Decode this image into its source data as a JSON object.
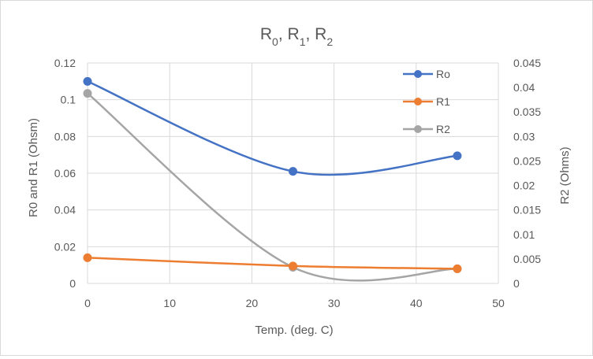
{
  "chart_data": {
    "type": "scatter",
    "title": {
      "base": "R",
      "parts": [
        "0",
        "1",
        "2"
      ],
      "separator": ", "
    },
    "title_plain": "R0, R1, R2",
    "xlabel": "Temp. (deg. C)",
    "ylabel_left": "R0 and R1 (Ohsm)",
    "ylabel_right": "R2 (Ohms)",
    "xlim": [
      0,
      50
    ],
    "ylim_left": [
      0,
      0.12
    ],
    "ylim_right": [
      0,
      0.045
    ],
    "xticks": [
      "0",
      "10",
      "20",
      "30",
      "40",
      "50"
    ],
    "yticks_left": [
      "0",
      "0.02",
      "0.04",
      "0.06",
      "0.08",
      "0.1",
      "0.12"
    ],
    "yticks_right": [
      "0",
      "0.005",
      "0.01",
      "0.015",
      "0.02",
      "0.025",
      "0.03",
      "0.035",
      "0.04",
      "0.045"
    ],
    "grid": true,
    "legend_position": "top-right",
    "series": [
      {
        "name": "Ro",
        "axis": "left",
        "color": "#4472c4",
        "x": [
          0,
          25,
          45
        ],
        "y": [
          0.11,
          0.061,
          0.0695
        ]
      },
      {
        "name": "R1",
        "axis": "left",
        "color": "#ed7d31",
        "x": [
          0,
          25,
          45
        ],
        "y": [
          0.014,
          0.0095,
          0.008
        ]
      },
      {
        "name": "R2",
        "axis": "right",
        "color": "#a5a5a5",
        "x": [
          0,
          25,
          45
        ],
        "y": [
          0.0388,
          0.0033,
          0.003
        ]
      }
    ]
  }
}
